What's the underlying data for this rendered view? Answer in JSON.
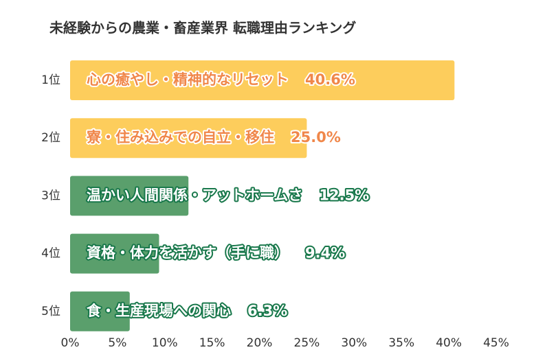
{
  "chart_data": {
    "type": "hbar",
    "title": "未経験からの農業・畜産業界 転職理由ランキング",
    "categories": [
      "1位",
      "2位",
      "3位",
      "4位",
      "5位"
    ],
    "descriptions": [
      "心の癒やし・精神的なリセット",
      "寮・住み込みでの自立・移住",
      "温かい人間関係・アットホームさ",
      "資格・体力を活かす（手に職）",
      "食・生産現場への関心"
    ],
    "values": [
      40.6,
      25.0,
      12.5,
      9.4,
      6.3
    ],
    "value_labels": [
      "40.6%",
      "25.0%",
      "12.5%",
      "9.4%",
      "6.3%"
    ],
    "colors": [
      "#fdcd5c",
      "#fdcd5c",
      "#5a9f6c",
      "#5a9f6c",
      "#5a9f6c"
    ],
    "label_colors": [
      "#f0874a",
      "#f0874a",
      "#ffffff",
      "#ffffff",
      "#ffffff"
    ],
    "label_outline_colors": [
      "#ffffff",
      "#ffffff",
      "#17774a",
      "#17774a",
      "#17774a"
    ],
    "xlim": [
      0,
      45
    ],
    "xticks": [
      {
        "value": 0,
        "label": "0%"
      },
      {
        "value": 5,
        "label": "5%"
      },
      {
        "value": 10,
        "label": "10%"
      },
      {
        "value": 15,
        "label": "15%"
      },
      {
        "value": 20,
        "label": "20%"
      },
      {
        "value": 25,
        "label": "25%"
      },
      {
        "value": 30,
        "label": "30%"
      },
      {
        "value": 35,
        "label": "35%"
      },
      {
        "value": 40,
        "label": "40%"
      },
      {
        "value": 45,
        "label": "45%"
      }
    ]
  }
}
